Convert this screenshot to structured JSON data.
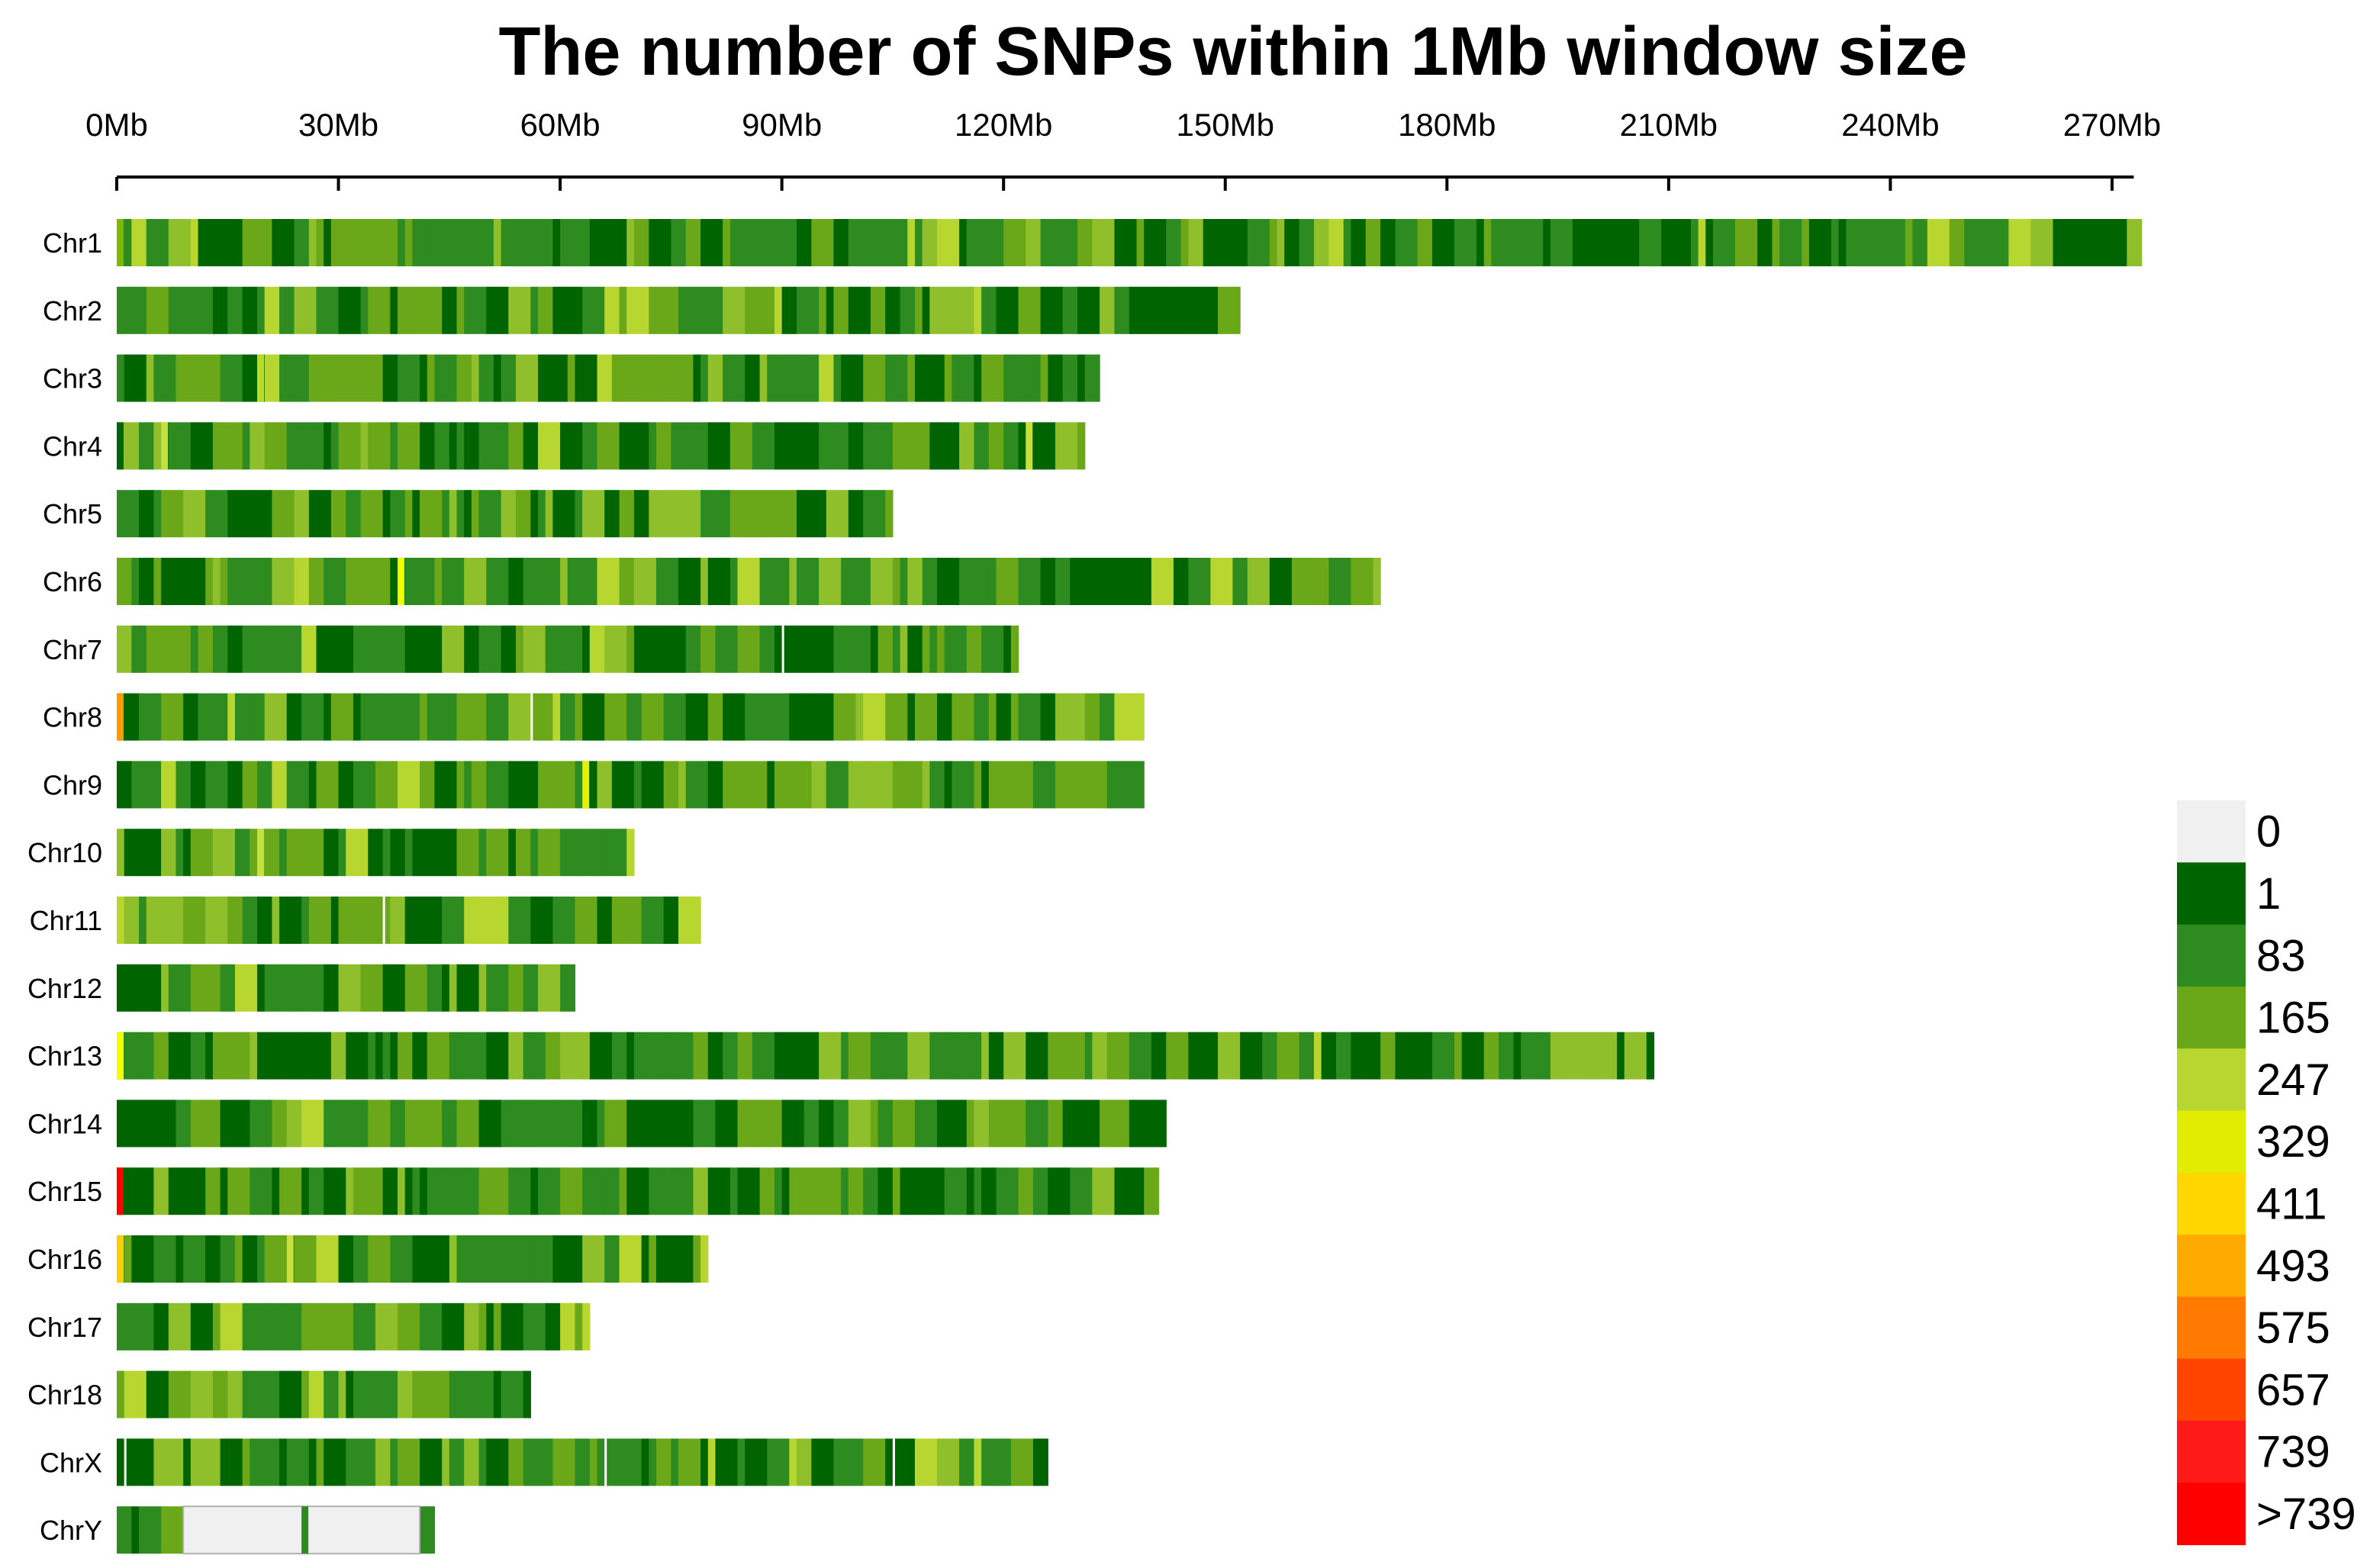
{
  "chart_data": {
    "type": "heatmap",
    "title": "The number of SNPs within 1Mb window size",
    "x_axis": {
      "unit": "Mb",
      "min": 0,
      "max": 275,
      "ticks": [
        0,
        30,
        60,
        90,
        120,
        150,
        180,
        210,
        240,
        270
      ],
      "tick_labels": [
        "0Mb",
        "30Mb",
        "60Mb",
        "90Mb",
        "120Mb",
        "150Mb",
        "180Mb",
        "210Mb",
        "240Mb",
        "270Mb"
      ]
    },
    "chromosomes": [
      {
        "name": "Chr1",
        "length_mb": 274,
        "notes": [
          {
            "pos": 0,
            "color": "#7fb800"
          }
        ]
      },
      {
        "name": "Chr2",
        "length_mb": 152,
        "notes": []
      },
      {
        "name": "Chr3",
        "length_mb": 133,
        "notes": [
          {
            "pos": 19,
            "color": "#b8dd22"
          }
        ]
      },
      {
        "name": "Chr4",
        "length_mb": 131,
        "notes": [
          {
            "pos": 0,
            "color": "#00640a"
          },
          {
            "pos": 6,
            "color": "#c6e040"
          },
          {
            "pos": 123,
            "color": "#c6e040"
          }
        ]
      },
      {
        "name": "Chr5",
        "length_mb": 105,
        "notes": []
      },
      {
        "name": "Chr6",
        "length_mb": 171,
        "notes": [
          {
            "pos": 38,
            "color": "#f2ff00"
          }
        ]
      },
      {
        "name": "Chr7",
        "length_mb": 122,
        "notes": [
          {
            "pos": 90,
            "color": "#ffffff"
          }
        ]
      },
      {
        "name": "Chr8",
        "length_mb": 139,
        "notes": [
          {
            "pos": 0,
            "color": "#ff9900"
          },
          {
            "pos": 56,
            "color": "#ffffff"
          }
        ]
      },
      {
        "name": "Chr9",
        "length_mb": 139,
        "notes": [
          {
            "pos": 63,
            "color": "#e8f000"
          }
        ]
      },
      {
        "name": "Chr10",
        "length_mb": 70,
        "notes": [
          {
            "pos": 19,
            "color": "#c6e040"
          }
        ]
      },
      {
        "name": "Chr11",
        "length_mb": 79,
        "notes": [
          {
            "pos": 36,
            "color": "#ffffff"
          }
        ]
      },
      {
        "name": "Chr12",
        "length_mb": 62,
        "notes": []
      },
      {
        "name": "Chr13",
        "length_mb": 208,
        "notes": [
          {
            "pos": 0,
            "color": "#f2ff00"
          }
        ]
      },
      {
        "name": "Chr14",
        "length_mb": 142,
        "notes": []
      },
      {
        "name": "Chr15",
        "length_mb": 141,
        "notes": [
          {
            "pos": 0,
            "color": "#ff0000"
          }
        ]
      },
      {
        "name": "Chr16",
        "length_mb": 80,
        "notes": [
          {
            "pos": 0,
            "color": "#ffcc00"
          },
          {
            "pos": 23,
            "color": "#c6e040"
          }
        ]
      },
      {
        "name": "Chr17",
        "length_mb": 64,
        "notes": []
      },
      {
        "name": "Chr18",
        "length_mb": 56,
        "notes": []
      },
      {
        "name": "ChrX",
        "length_mb": 126,
        "notes": [
          {
            "pos": 1,
            "color": "#ffffff"
          },
          {
            "pos": 66,
            "color": "#ffffff"
          },
          {
            "pos": 105,
            "color": "#ffffff"
          }
        ]
      },
      {
        "name": "ChrY",
        "length_mb": 43,
        "gap_start_mb": 9,
        "gap_end_mb": 41,
        "notes": [
          {
            "pos": 25,
            "color": "#2e8b20"
          }
        ]
      }
    ],
    "legend": {
      "labels": [
        "0",
        "1",
        "83",
        "165",
        "247",
        "329",
        "411",
        "493",
        "575",
        "657",
        "739",
        ">739"
      ],
      "colors": [
        "#f0f0f0",
        "#006400",
        "#2e8b20",
        "#6aa81a",
        "#b8d630",
        "#e0ec00",
        "#ffd700",
        "#ffaa00",
        "#ff7a00",
        "#ff4400",
        "#ff1a1a",
        "#ff0000"
      ]
    },
    "gradient_colors": [
      "#006400",
      "#2e8b20",
      "#6aa81a",
      "#8fbf2a",
      "#b8d630",
      "#e0ec00"
    ]
  }
}
